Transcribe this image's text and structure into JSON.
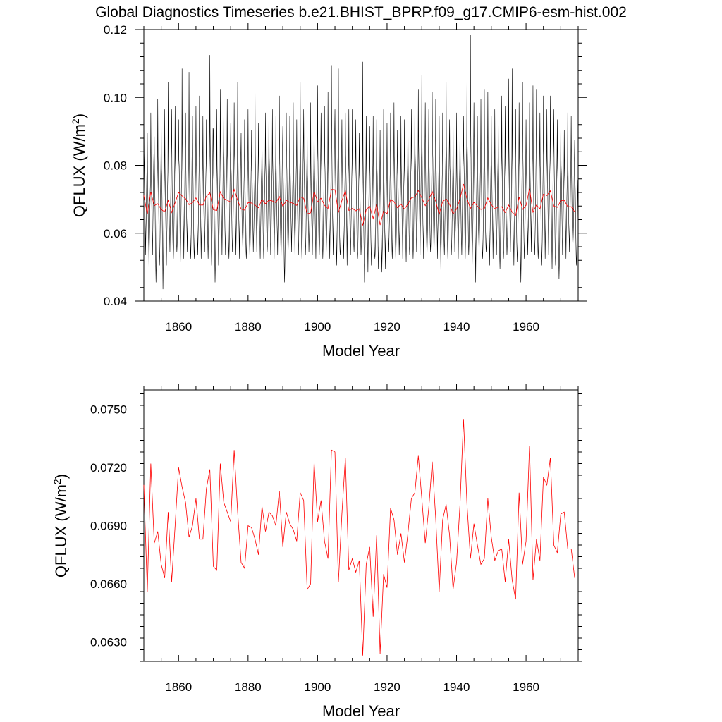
{
  "title": "Global Diagnostics Timeseries b.e21.BHIST_BPRP.f09_g17.CMIP6-esm-hist.002",
  "chart_data": [
    {
      "type": "line",
      "xlabel": "Model Year",
      "ylabel": "QFLUX (W/m",
      "ylabel_sup": "2",
      "ylabel_close": ")",
      "xlim": [
        1850,
        1975
      ],
      "ylim": [
        0.04,
        0.12
      ],
      "x_ticks": [
        1860,
        1880,
        1900,
        1920,
        1940,
        1960
      ],
      "x_tick_labels": [
        "1860",
        "1880",
        "1900",
        "1920",
        "1940",
        "1960"
      ],
      "y_ticks": [
        0.04,
        0.06,
        0.08,
        0.1,
        0.12
      ],
      "y_tick_labels": [
        "0.04",
        "0.06",
        "0.08",
        "0.10",
        "0.12"
      ],
      "series": [
        {
          "color": "#000000",
          "resolution": "monthly",
          "start": 1850.0,
          "annual_peaks": [
            0.0985,
            0.0895,
            0.0955,
            0.0885,
            0.0995,
            0.0935,
            0.0965,
            0.1045,
            0.0965,
            0.0975,
            0.0935,
            0.1085,
            0.0955,
            0.1075,
            0.0945,
            0.0975,
            0.1005,
            0.0945,
            0.0935,
            0.1125,
            0.0905,
            0.0965,
            0.1025,
            0.0955,
            0.0995,
            0.0925,
            0.0985,
            0.1045,
            0.0895,
            0.0935,
            0.0965,
            0.0905,
            0.1015,
            0.0925,
            0.0885,
            0.0955,
            0.0975,
            0.0965,
            0.0945,
            0.1005,
            0.0915,
            0.0955,
            0.0945,
            0.0985,
            0.0935,
            0.1045,
            0.0965,
            0.0915,
            0.0985,
            0.0935,
            0.1035,
            0.0955,
            0.0975,
            0.1015,
            0.1095,
            0.0965,
            0.1085,
            0.0935,
            0.0955,
            0.0965,
            0.0965,
            0.0935,
            0.0895,
            0.1105,
            0.0945,
            0.0915,
            0.0945,
            0.0935,
            0.0905,
            0.0965,
            0.0925,
            0.0955,
            0.0985,
            0.0905,
            0.0945,
            0.0935,
            0.0945,
            0.0965,
            0.0985,
            0.1025,
            0.1065,
            0.0985,
            0.0965,
            0.1015,
            0.0995,
            0.0945,
            0.0955,
            0.1045,
            0.0935,
            0.0965,
            0.0955,
            0.0925,
            0.0945,
            0.1045,
            0.1185,
            0.0985,
            0.0945,
            0.0995,
            0.1025,
            0.1015,
            0.0945,
            0.0965,
            0.0935,
            0.1005,
            0.0975,
            0.1055,
            0.1085,
            0.0965,
            0.0985,
            0.1045,
            0.0935,
            0.0985,
            0.1035,
            0.1025,
            0.0955,
            0.1005,
            0.0965,
            0.1005,
            0.0965,
            0.0935,
            0.0925,
            0.0905,
            0.0955,
            0.0945,
            0.0875
          ],
          "annual_troughs": [
            0.0535,
            0.0485,
            0.0535,
            0.0455,
            0.0505,
            0.0435,
            0.0505,
            0.0545,
            0.0525,
            0.0545,
            0.0515,
            0.0525,
            0.0545,
            0.0525,
            0.0525,
            0.0535,
            0.0525,
            0.0545,
            0.0525,
            0.0505,
            0.0455,
            0.0505,
            0.0535,
            0.0535,
            0.0525,
            0.0545,
            0.0535,
            0.0525,
            0.0545,
            0.0525,
            0.0535,
            0.0545,
            0.0545,
            0.0525,
            0.0525,
            0.0545,
            0.0535,
            0.0525,
            0.0535,
            0.0525,
            0.0455,
            0.0535,
            0.0545,
            0.0525,
            0.0535,
            0.0525,
            0.0535,
            0.0545,
            0.0535,
            0.0525,
            0.0535,
            0.0525,
            0.0545,
            0.0525,
            0.0535,
            0.0505,
            0.0535,
            0.0525,
            0.0505,
            0.0535,
            0.0545,
            0.0525,
            0.0535,
            0.0455,
            0.0485,
            0.0505,
            0.0525,
            0.0495,
            0.0485,
            0.0495,
            0.0545,
            0.0525,
            0.0525,
            0.0535,
            0.0525,
            0.0515,
            0.0535,
            0.0525,
            0.0545,
            0.0535,
            0.0525,
            0.0535,
            0.0545,
            0.0535,
            0.0525,
            0.0485,
            0.0535,
            0.0525,
            0.0535,
            0.0545,
            0.0525,
            0.0535,
            0.0525,
            0.0535,
            0.0505,
            0.0455,
            0.0535,
            0.0525,
            0.0545,
            0.0505,
            0.0525,
            0.0535,
            0.0495,
            0.0525,
            0.0535,
            0.0545,
            0.0505,
            0.0515,
            0.0455,
            0.0525,
            0.0535,
            0.0545,
            0.0535,
            0.0525,
            0.0505,
            0.0525,
            0.0535,
            0.0495,
            0.0505,
            0.0465,
            0.0535,
            0.0525,
            0.0545,
            0.0565,
            0.0505
          ]
        },
        {
          "color": "#ff0000",
          "resolution": "annual",
          "ref": "annual_mean"
        }
      ]
    },
    {
      "type": "line",
      "xlabel": "Model Year",
      "ylabel": "QFLUX (W/m",
      "ylabel_sup": "2",
      "ylabel_close": ")",
      "xlim": [
        1850,
        1975
      ],
      "ylim": [
        0.062,
        0.076
      ],
      "x_ticks": [
        1860,
        1880,
        1900,
        1920,
        1940,
        1960
      ],
      "x_tick_labels": [
        "1860",
        "1880",
        "1900",
        "1920",
        "1940",
        "1960"
      ],
      "y_ticks": [
        0.063,
        0.066,
        0.069,
        0.072,
        0.075
      ],
      "y_tick_labels": [
        "0.0630",
        "0.0660",
        "0.0690",
        "0.0720",
        "0.0750"
      ],
      "series": [
        {
          "color": "#ff0000",
          "resolution": "annual",
          "x_start": 1850,
          "annual_mean": [
            0.0711,
            0.0656,
            0.0722,
            0.0681,
            0.0687,
            0.067,
            0.0663,
            0.0697,
            0.0661,
            0.069,
            0.072,
            0.071,
            0.0702,
            0.0684,
            0.069,
            0.0704,
            0.0683,
            0.0683,
            0.0709,
            0.0719,
            0.0669,
            0.0667,
            0.0722,
            0.0702,
            0.0697,
            0.0692,
            0.0729,
            0.0697,
            0.0671,
            0.0668,
            0.069,
            0.0689,
            0.0683,
            0.0675,
            0.07,
            0.0687,
            0.0697,
            0.0695,
            0.069,
            0.0708,
            0.0679,
            0.0697,
            0.0691,
            0.0688,
            0.0682,
            0.0707,
            0.0703,
            0.0657,
            0.066,
            0.0723,
            0.0692,
            0.0703,
            0.0682,
            0.0673,
            0.0729,
            0.0728,
            0.0661,
            0.0696,
            0.0725,
            0.0667,
            0.0673,
            0.0666,
            0.0672,
            0.0623,
            0.067,
            0.0679,
            0.0643,
            0.0685,
            0.0624,
            0.0665,
            0.0658,
            0.0699,
            0.0693,
            0.0675,
            0.0686,
            0.0671,
            0.0686,
            0.0704,
            0.0707,
            0.0726,
            0.0704,
            0.0681,
            0.0699,
            0.0723,
            0.0694,
            0.0656,
            0.0693,
            0.0701,
            0.0685,
            0.0657,
            0.0671,
            0.0701,
            0.0745,
            0.0701,
            0.0673,
            0.0691,
            0.068,
            0.067,
            0.0673,
            0.0704,
            0.0684,
            0.0672,
            0.0677,
            0.0678,
            0.0661,
            0.0683,
            0.0662,
            0.0652,
            0.0707,
            0.067,
            0.0682,
            0.0731,
            0.0662,
            0.0683,
            0.0672,
            0.0715,
            0.0711,
            0.0725,
            0.068,
            0.0676,
            0.0696,
            0.0697,
            0.0678,
            0.0678,
            0.0663
          ]
        }
      ]
    }
  ]
}
